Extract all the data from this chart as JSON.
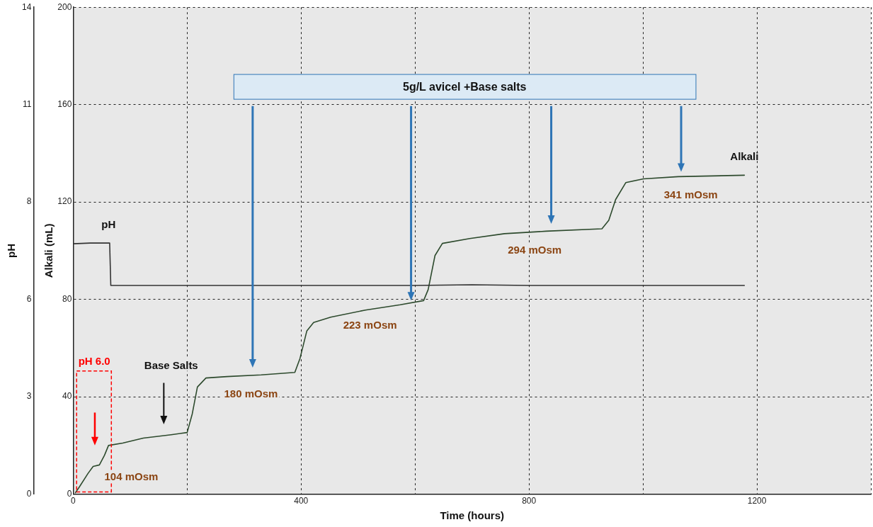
{
  "chart_data": {
    "type": "line",
    "xlabel": "Time (hours)",
    "ylabel": "pH",
    "y2label": "Alkali (mL)",
    "xlim": [
      0,
      1400
    ],
    "xticks": [
      0,
      {
        "value": 200,
        "label": null
      },
      400,
      {
        "value": 600,
        "label": null
      },
      800,
      {
        "value": 1000,
        "label": null
      },
      1200,
      {
        "value": 1400,
        "label": null
      }
    ],
    "y2lim": [
      0,
      200
    ],
    "y2ticks": [
      0,
      40,
      80,
      120,
      160,
      200
    ],
    "ylim": [
      0,
      14
    ],
    "yticks": [
      0,
      {
        "value": 2.8,
        "label": "3"
      },
      {
        "value": 5.6,
        "label": "6"
      },
      {
        "value": 8.4,
        "label": "8"
      },
      {
        "value": 11.2,
        "label": "11"
      },
      14
    ],
    "grid": true,
    "legend": false,
    "marker": "none",
    "line_style": "solid",
    "series": [
      {
        "name": "pH",
        "color": "#333333",
        "x": [
          0,
          30,
          64,
          66,
          200,
          600,
          700,
          800,
          1000,
          1178
        ],
        "values": [
          7.2,
          7.22,
          7.22,
          6.0,
          6.0,
          6.0,
          6.02,
          6.0,
          6.0,
          6.0
        ]
      },
      {
        "name": "Alkali",
        "color": "#2d4a2d",
        "axis": "y2",
        "x": [
          4,
          11,
          26,
          35,
          46,
          55,
          62,
          87,
          123,
          172,
          200,
          209,
          218,
          233,
          270,
          330,
          389,
          398,
          410,
          422,
          452,
          513,
          574,
          615,
          623,
          635,
          648,
          696,
          757,
          830,
          928,
          940,
          952,
          970,
          1001,
          1062,
          1178
        ],
        "values": [
          0.6,
          3,
          8.5,
          11.4,
          12,
          16,
          20,
          21,
          23,
          24.4,
          25.3,
          33,
          44,
          47.7,
          48.3,
          49,
          50,
          55.7,
          67,
          70.5,
          72.7,
          75.6,
          77.8,
          79.5,
          84,
          98,
          103,
          105,
          107,
          108,
          109,
          112.5,
          121,
          128,
          129.5,
          130.4,
          131
        ]
      }
    ],
    "annotations": [
      "5g/L avicel +Base salts",
      "pH 6.0",
      "Base Salts",
      "104 mOsm",
      "180 mOsm",
      "223 mOsm",
      "294 mOsm",
      "341 mOsm"
    ]
  }
}
